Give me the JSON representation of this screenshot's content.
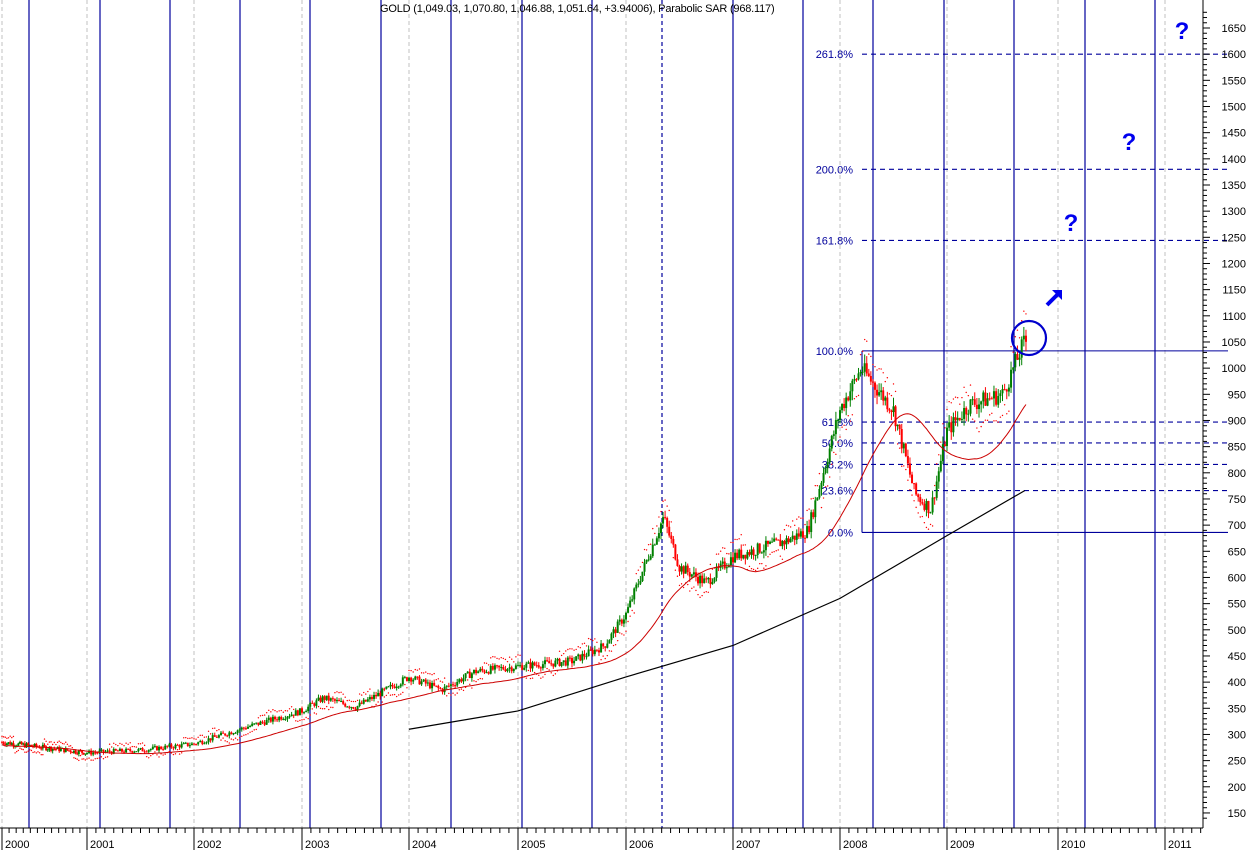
{
  "chart_data": {
    "type": "candlestick",
    "title": "GOLD (1,049.03, 1,070.80, 1,046.88, 1,051.64, +3.94006), Parabolic SAR (968.117)",
    "symbol": "GOLD",
    "ohlc_last": {
      "open": 1049.03,
      "high": 1070.8,
      "low": 1046.88,
      "close": 1051.64,
      "change": 3.94006
    },
    "indicators": [
      {
        "name": "Parabolic SAR",
        "value": 968.117,
        "color": "#ff0000",
        "style": "dotted"
      },
      {
        "name": "Moving Average (short)",
        "color": "#cc0000",
        "style": "solid"
      },
      {
        "name": "Moving Average (long)",
        "color": "#000000",
        "style": "solid"
      }
    ],
    "xlabel": "",
    "ylabel": "",
    "x_tick_labels": [
      "2000",
      "2001",
      "2002",
      "2003",
      "2004",
      "2005",
      "2006",
      "2007",
      "2008",
      "2009",
      "2010",
      "2011"
    ],
    "y_tick_labels": [
      "150",
      "200",
      "250",
      "300",
      "350",
      "400",
      "450",
      "500",
      "550",
      "600",
      "650",
      "700",
      "750",
      "800",
      "850",
      "900",
      "950",
      "1000",
      "1050",
      "1100",
      "1150",
      "1200",
      "1250",
      "1300",
      "1350",
      "1400",
      "1450",
      "1500",
      "1550",
      "1600",
      "1650"
    ],
    "ylim": [
      130,
      1680
    ],
    "y_axis_position": "right",
    "grid": {
      "vertical_year_lines": "gray dashed",
      "cycle_lines": "blue solid"
    },
    "fibonacci_levels": [
      {
        "label": "0.0%",
        "price": 686
      },
      {
        "label": "23.6%",
        "price": 766
      },
      {
        "label": "38.2%",
        "price": 816
      },
      {
        "label": "50.0%",
        "price": 857
      },
      {
        "label": "61.8%",
        "price": 897
      },
      {
        "label": "100.0%",
        "price": 1033
      },
      {
        "label": "161.8%",
        "price": 1244
      },
      {
        "label": "200.0%",
        "price": 1380
      },
      {
        "label": "261.8%",
        "price": 1600
      }
    ],
    "price_series": {
      "x": [
        "2000.0",
        "2000.5",
        "2001.0",
        "2001.5",
        "2002.0",
        "2002.5",
        "2003.0",
        "2003.2",
        "2003.5",
        "2004.0",
        "2004.3",
        "2004.6",
        "2005.0",
        "2005.5",
        "2005.8",
        "2006.0",
        "2006.35",
        "2006.5",
        "2006.75",
        "2007.0",
        "2007.5",
        "2007.7",
        "2008.0",
        "2008.2",
        "2008.5",
        "2008.7",
        "2008.85",
        "2009.0",
        "2009.2",
        "2009.5",
        "2009.7"
      ],
      "close": [
        285,
        275,
        265,
        270,
        282,
        315,
        345,
        370,
        352,
        410,
        385,
        420,
        430,
        440,
        470,
        530,
        715,
        620,
        590,
        640,
        670,
        690,
        920,
        1000,
        920,
        760,
        730,
        880,
        930,
        950,
        1052
      ]
    },
    "long_ma_series": {
      "x": [
        "2004.0",
        "2005.0",
        "2006.0",
        "2007.0",
        "2008.0",
        "2009.0",
        "2009.7"
      ],
      "values": [
        310,
        345,
        410,
        470,
        560,
        680,
        766
      ]
    },
    "annotations": [
      {
        "type": "circle",
        "label": "breakout",
        "near_price": 1050,
        "color": "#0000cc"
      },
      {
        "type": "arrow",
        "direction": "up-right",
        "color": "#0000ee"
      },
      {
        "type": "text",
        "label": "?",
        "near_level": "161.8%"
      },
      {
        "type": "text",
        "label": "?",
        "near_level": "200.0%"
      },
      {
        "type": "text",
        "label": "?",
        "near_level": "261.8%"
      }
    ],
    "cycle_line_x_positions": [
      29,
      100,
      170,
      240,
      310,
      381,
      451,
      522,
      592,
      662,
      733,
      803,
      873,
      944,
      1014,
      1085,
      1155
    ]
  },
  "header": {
    "title": "GOLD (1,049.03, 1,070.80, 1,046.88, 1,051.64, +3.94006), Parabolic SAR (968.117)"
  },
  "annotations": {
    "question_1": "?",
    "question_2": "?",
    "question_3": "?"
  },
  "colors": {
    "cycle_line": "#00009c",
    "fib_line": "#00009c",
    "bull_candle": "#008000",
    "bear_candle": "#ff0000",
    "sar": "#ff0000",
    "short_ma": "#cc0000",
    "long_ma": "#000000",
    "annotation": "#0000ee",
    "year_grid": "#c0c0c0"
  }
}
